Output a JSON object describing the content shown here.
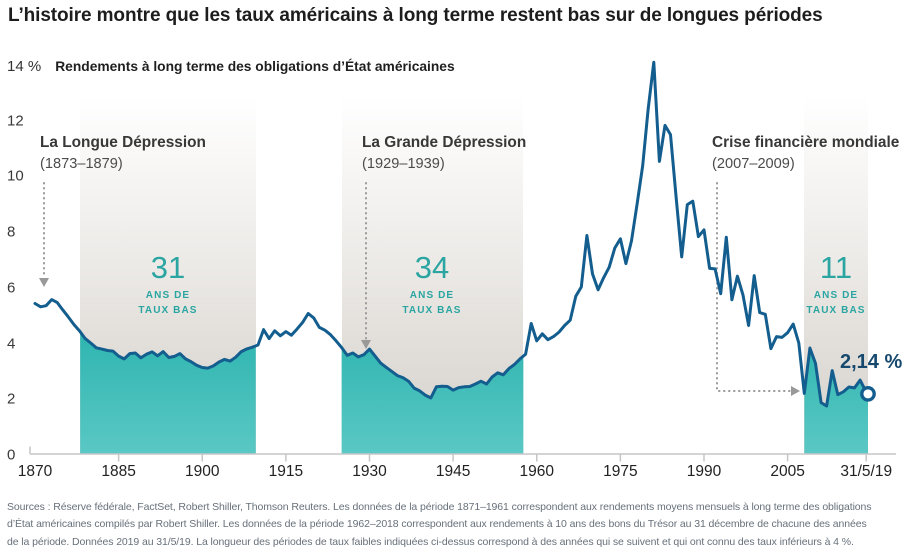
{
  "title": "L’histoire montre que les taux américains à long terme restent bas sur de longues périodes",
  "chart_data": {
    "type": "line",
    "title": "L’histoire montre que les taux américains à long terme restent bas sur de longues périodes",
    "subtitle": "Rendements à long terme des obligations d’État américaines",
    "unit": "%",
    "grid": false,
    "y_axis": {
      "min": 0,
      "max": 14,
      "ticks": [
        {
          "value": 14,
          "label": "14 %"
        },
        {
          "value": 12,
          "label": "12"
        },
        {
          "value": 10,
          "label": "10"
        },
        {
          "value": 8,
          "label": "8"
        },
        {
          "value": 6,
          "label": "6"
        },
        {
          "value": 4,
          "label": "4"
        },
        {
          "value": 2,
          "label": "2"
        },
        {
          "value": 0,
          "label": "0"
        }
      ]
    },
    "x_axis": {
      "min": 1870,
      "max": 2019.42,
      "ticks": [
        {
          "label": "1870",
          "year": 1870
        },
        {
          "label": "1885",
          "year": 1885
        },
        {
          "label": "1900",
          "year": 1900
        },
        {
          "label": "1915",
          "year": 1915
        },
        {
          "label": "1930",
          "year": 1930
        },
        {
          "label": "1945",
          "year": 1945
        },
        {
          "label": "1960",
          "year": 1960
        },
        {
          "label": "1975",
          "year": 1975
        },
        {
          "label": "1990",
          "year": 1990
        },
        {
          "label": "2005",
          "year": 2005
        },
        {
          "label": "31/5/19",
          "year": 2019.1
        }
      ]
    },
    "series": [
      {
        "name": "Rendements à long terme des obligations d’État américaines (%)",
        "points": [
          [
            1870,
            5.44
          ],
          [
            1871,
            5.32
          ],
          [
            1872,
            5.36
          ],
          [
            1873,
            5.58
          ],
          [
            1874,
            5.47
          ],
          [
            1875,
            5.2
          ],
          [
            1876,
            4.95
          ],
          [
            1877,
            4.68
          ],
          [
            1878,
            4.45
          ],
          [
            1879,
            4.18
          ],
          [
            1880,
            4.02
          ],
          [
            1881,
            3.85
          ],
          [
            1882,
            3.8
          ],
          [
            1883,
            3.75
          ],
          [
            1884,
            3.73
          ],
          [
            1885,
            3.55
          ],
          [
            1886,
            3.45
          ],
          [
            1887,
            3.64
          ],
          [
            1888,
            3.66
          ],
          [
            1889,
            3.49
          ],
          [
            1890,
            3.62
          ],
          [
            1891,
            3.7
          ],
          [
            1892,
            3.56
          ],
          [
            1893,
            3.71
          ],
          [
            1894,
            3.5
          ],
          [
            1895,
            3.54
          ],
          [
            1896,
            3.64
          ],
          [
            1897,
            3.45
          ],
          [
            1898,
            3.35
          ],
          [
            1899,
            3.22
          ],
          [
            1900,
            3.14
          ],
          [
            1901,
            3.12
          ],
          [
            1902,
            3.2
          ],
          [
            1903,
            3.34
          ],
          [
            1904,
            3.43
          ],
          [
            1905,
            3.37
          ],
          [
            1906,
            3.51
          ],
          [
            1907,
            3.71
          ],
          [
            1908,
            3.81
          ],
          [
            1909,
            3.87
          ],
          [
            1910,
            3.95
          ],
          [
            1911,
            4.5
          ],
          [
            1912,
            4.18
          ],
          [
            1913,
            4.46
          ],
          [
            1914,
            4.28
          ],
          [
            1915,
            4.43
          ],
          [
            1916,
            4.3
          ],
          [
            1917,
            4.52
          ],
          [
            1918,
            4.76
          ],
          [
            1919,
            5.08
          ],
          [
            1920,
            4.92
          ],
          [
            1921,
            4.58
          ],
          [
            1922,
            4.48
          ],
          [
            1923,
            4.32
          ],
          [
            1924,
            4.1
          ],
          [
            1925,
            3.86
          ],
          [
            1926,
            3.58
          ],
          [
            1927,
            3.66
          ],
          [
            1928,
            3.52
          ],
          [
            1929,
            3.6
          ],
          [
            1930,
            3.8
          ],
          [
            1931,
            3.55
          ],
          [
            1932,
            3.3
          ],
          [
            1933,
            3.15
          ],
          [
            1934,
            3.0
          ],
          [
            1935,
            2.85
          ],
          [
            1936,
            2.78
          ],
          [
            1937,
            2.65
          ],
          [
            1938,
            2.4
          ],
          [
            1939,
            2.3
          ],
          [
            1940,
            2.15
          ],
          [
            1941,
            2.05
          ],
          [
            1942,
            2.45
          ],
          [
            1943,
            2.47
          ],
          [
            1944,
            2.46
          ],
          [
            1945,
            2.33
          ],
          [
            1946,
            2.42
          ],
          [
            1947,
            2.45
          ],
          [
            1948,
            2.46
          ],
          [
            1949,
            2.55
          ],
          [
            1950,
            2.65
          ],
          [
            1951,
            2.55
          ],
          [
            1952,
            2.8
          ],
          [
            1953,
            2.95
          ],
          [
            1954,
            2.88
          ],
          [
            1955,
            3.1
          ],
          [
            1956,
            3.25
          ],
          [
            1957,
            3.45
          ],
          [
            1958,
            3.62
          ],
          [
            1959,
            4.72
          ],
          [
            1960,
            4.1
          ],
          [
            1961,
            4.35
          ],
          [
            1962,
            4.14
          ],
          [
            1963,
            4.25
          ],
          [
            1964,
            4.41
          ],
          [
            1965,
            4.65
          ],
          [
            1966,
            4.84
          ],
          [
            1967,
            5.7
          ],
          [
            1968,
            6.03
          ],
          [
            1969,
            7.88
          ],
          [
            1970,
            6.5
          ],
          [
            1971,
            5.93
          ],
          [
            1972,
            6.36
          ],
          [
            1973,
            6.74
          ],
          [
            1974,
            7.43
          ],
          [
            1975,
            7.76
          ],
          [
            1976,
            6.87
          ],
          [
            1977,
            7.69
          ],
          [
            1978,
            9.01
          ],
          [
            1979,
            10.39
          ],
          [
            1980,
            12.43
          ],
          [
            1981,
            14.1
          ],
          [
            1982,
            10.54
          ],
          [
            1983,
            11.83
          ],
          [
            1984,
            11.5
          ],
          [
            1985,
            9.26
          ],
          [
            1986,
            7.11
          ],
          [
            1987,
            8.99
          ],
          [
            1988,
            9.11
          ],
          [
            1989,
            7.84
          ],
          [
            1990,
            8.08
          ],
          [
            1991,
            6.7
          ],
          [
            1992,
            6.68
          ],
          [
            1993,
            5.79
          ],
          [
            1994,
            7.82
          ],
          [
            1995,
            5.57
          ],
          [
            1996,
            6.42
          ],
          [
            1997,
            5.74
          ],
          [
            1998,
            4.65
          ],
          [
            1999,
            6.44
          ],
          [
            2000,
            5.11
          ],
          [
            2001,
            5.05
          ],
          [
            2002,
            3.82
          ],
          [
            2003,
            4.25
          ],
          [
            2004,
            4.22
          ],
          [
            2005,
            4.39
          ],
          [
            2006,
            4.7
          ],
          [
            2007,
            4.02
          ],
          [
            2008,
            2.21
          ],
          [
            2009,
            3.84
          ],
          [
            2010,
            3.29
          ],
          [
            2011,
            1.88
          ],
          [
            2012,
            1.76
          ],
          [
            2013,
            3.03
          ],
          [
            2014,
            2.17
          ],
          [
            2015,
            2.27
          ],
          [
            2016,
            2.44
          ],
          [
            2017,
            2.41
          ],
          [
            2018,
            2.69
          ],
          [
            2019.42,
            2.14
          ]
        ]
      }
    ],
    "end_point": {
      "label": "2,14 %",
      "year": 2019.42,
      "value": 2.14
    },
    "low_rate_bands": [
      {
        "num": "31",
        "caption_line1": "ANS DE",
        "caption_line2": "TAUX BAS",
        "start_year": 1878.1,
        "end_year": 1909.6
      },
      {
        "num": "34",
        "caption_line1": "ANS DE",
        "caption_line2": "TAUX BAS",
        "start_year": 1925.0,
        "end_year": 1957.6
      },
      {
        "num": "11",
        "caption_line1": "ANS DE",
        "caption_line2": "TAUX BAS",
        "start_year": 2008.0,
        "end_year": 2019.42
      }
    ],
    "annotations": [
      {
        "title": "La Longue Dépression",
        "period": "(1873–1879)"
      },
      {
        "title": "La Grande Dépression",
        "period": "(1929–1939)"
      },
      {
        "title": "Crise financière mondiale",
        "period": "(2007–2009)"
      }
    ],
    "colors": {
      "line": "#135e8e",
      "teal_top": "#2eb4b0",
      "teal_bottom": "#5ac8c4",
      "teal_text": "#2aa5a1",
      "band_gray": "#dcd8d3",
      "value_label": "#17496f",
      "arrow": "#999999",
      "axis": "#c6c6c6"
    }
  },
  "source_lines": [
    "Sources : Réserve fédérale, FactSet, Robert Shiller, Thomson Reuters. Les données de la période 1871–1961 correspondent aux rendements moyens mensuels à long terme des obligations",
    "d’État américaines compilés par Robert Shiller. Les données de la période 1962–2018 correspondent aux rendements à 10 ans des bons du Trésor au 31 décembre de chacune des années",
    "de la période. Données 2019 au 31/5/19. La longueur des périodes de taux faibles indiquées ci-dessus correspond à des années qui se suivent et qui ont connu des taux inférieurs à 4 %."
  ]
}
